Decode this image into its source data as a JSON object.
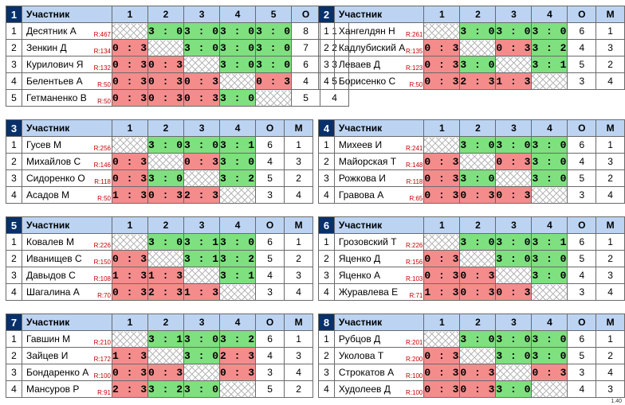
{
  "header": {
    "participant": "Участник",
    "points": "О",
    "place": "М"
  },
  "version": "1.40",
  "groups": [
    {
      "id": "1",
      "players": [
        {
          "name": "Десятник А",
          "rating": "R:467",
          "results": [
            "",
            "3 : 0",
            "3 : 0",
            "3 : 0",
            "3 : 0"
          ],
          "points": "8",
          "place": "1"
        },
        {
          "name": "Зенкин Д",
          "rating": "R:134",
          "results": [
            "0 : 3",
            "",
            "3 : 0",
            "3 : 0",
            "3 : 0"
          ],
          "points": "7",
          "place": "2"
        },
        {
          "name": "Курилович Я",
          "rating": "R:132",
          "results": [
            "0 : 3",
            "0 : 3",
            "",
            "3 : 0",
            "3 : 0"
          ],
          "points": "6",
          "place": "3"
        },
        {
          "name": "Белентьев А",
          "rating": "R:50",
          "results": [
            "0 : 3",
            "0 : 3",
            "0 : 3",
            "",
            "0 : 3"
          ],
          "points": "4",
          "place": "5"
        },
        {
          "name": "Гетманенко В",
          "rating": "R:50",
          "results": [
            "0 : 3",
            "0 : 3",
            "0 : 3",
            "3 : 0",
            ""
          ],
          "points": "5",
          "place": "4"
        }
      ]
    },
    {
      "id": "2",
      "players": [
        {
          "name": "Хангелдян Н",
          "rating": "R:261",
          "results": [
            "",
            "3 : 0",
            "3 : 0",
            "3 : 0"
          ],
          "points": "6",
          "place": "1"
        },
        {
          "name": "Кадлубиский А",
          "rating": "R:135",
          "results": [
            "0 : 3",
            "",
            "0 : 3",
            "3 : 2"
          ],
          "points": "4",
          "place": "3"
        },
        {
          "name": "Леваев Д",
          "rating": "R:123",
          "results": [
            "0 : 3",
            "3 : 0",
            "",
            "3 : 1"
          ],
          "points": "5",
          "place": "2"
        },
        {
          "name": "Борисенко С",
          "rating": "R:50",
          "results": [
            "0 : 3",
            "2 : 3",
            "1 : 3",
            ""
          ],
          "points": "3",
          "place": "4"
        }
      ]
    },
    {
      "id": "3",
      "players": [
        {
          "name": "Гусев М",
          "rating": "R:256",
          "results": [
            "",
            "3 : 0",
            "3 : 0",
            "3 : 1"
          ],
          "points": "6",
          "place": "1"
        },
        {
          "name": "Михайлов С",
          "rating": "R:146",
          "results": [
            "0 : 3",
            "",
            "0 : 3",
            "3 : 0"
          ],
          "points": "4",
          "place": "3"
        },
        {
          "name": "Сидоренко О",
          "rating": "R:118",
          "results": [
            "0 : 3",
            "3 : 0",
            "",
            "3 : 2"
          ],
          "points": "5",
          "place": "2"
        },
        {
          "name": "Асадов М",
          "rating": "R:50",
          "results": [
            "1 : 3",
            "0 : 3",
            "2 : 3",
            ""
          ],
          "points": "3",
          "place": "4"
        }
      ]
    },
    {
      "id": "4",
      "players": [
        {
          "name": "Михеев И",
          "rating": "R:241",
          "results": [
            "",
            "3 : 0",
            "3 : 0",
            "3 : 0"
          ],
          "points": "6",
          "place": "1"
        },
        {
          "name": "Майорская Т",
          "rating": "R:148",
          "results": [
            "0 : 3",
            "",
            "0 : 3",
            "3 : 0"
          ],
          "points": "4",
          "place": "3"
        },
        {
          "name": "Рожкова И",
          "rating": "R:118",
          "results": [
            "0 : 3",
            "3 : 0",
            "",
            "3 : 0"
          ],
          "points": "5",
          "place": "2"
        },
        {
          "name": "Гравова А",
          "rating": "R:65",
          "results": [
            "0 : 3",
            "0 : 3",
            "0 : 3",
            ""
          ],
          "points": "3",
          "place": "4"
        }
      ]
    },
    {
      "id": "5",
      "players": [
        {
          "name": "Ковалев М",
          "rating": "R:226",
          "results": [
            "",
            "3 : 0",
            "3 : 1",
            "3 : 0"
          ],
          "points": "6",
          "place": "1"
        },
        {
          "name": "Иванищев С",
          "rating": "R:150",
          "results": [
            "0 : 3",
            "",
            "3 : 1",
            "3 : 2"
          ],
          "points": "5",
          "place": "2"
        },
        {
          "name": "Давыдов С",
          "rating": "R:108",
          "results": [
            "1 : 3",
            "1 : 3",
            "",
            "3 : 1"
          ],
          "points": "4",
          "place": "3"
        },
        {
          "name": "Шагалина А",
          "rating": "R:70",
          "results": [
            "0 : 3",
            "2 : 3",
            "1 : 3",
            ""
          ],
          "points": "3",
          "place": "4"
        }
      ]
    },
    {
      "id": "6",
      "players": [
        {
          "name": "Грозовский Т",
          "rating": "R:226",
          "results": [
            "",
            "3 : 0",
            "3 : 0",
            "3 : 1"
          ],
          "points": "6",
          "place": "1"
        },
        {
          "name": "Яценко Д",
          "rating": "R:156",
          "results": [
            "0 : 3",
            "",
            "3 : 0",
            "3 : 0"
          ],
          "points": "5",
          "place": "2"
        },
        {
          "name": "Яценко А",
          "rating": "R:103",
          "results": [
            "0 : 3",
            "0 : 3",
            "",
            "3 : 0"
          ],
          "points": "4",
          "place": "3"
        },
        {
          "name": "Журавлева Е",
          "rating": "R:71",
          "results": [
            "1 : 3",
            "0 : 3",
            "0 : 3",
            ""
          ],
          "points": "3",
          "place": "4"
        }
      ]
    },
    {
      "id": "7",
      "players": [
        {
          "name": "Гавшин М",
          "rating": "R:210",
          "results": [
            "",
            "3 : 1",
            "3 : 0",
            "3 : 2"
          ],
          "points": "6",
          "place": "1"
        },
        {
          "name": "Зайцев И",
          "rating": "R:172",
          "results": [
            "1 : 3",
            "",
            "3 : 0",
            "2 : 3"
          ],
          "points": "4",
          "place": "3"
        },
        {
          "name": "Бондаренко А",
          "rating": "R:100",
          "results": [
            "0 : 3",
            "0 : 3",
            "",
            "0 : 3"
          ],
          "points": "3",
          "place": "4"
        },
        {
          "name": "Мансуров Р",
          "rating": "R:91",
          "results": [
            "2 : 3",
            "3 : 2",
            "3 : 0",
            ""
          ],
          "points": "5",
          "place": "2"
        }
      ]
    },
    {
      "id": "8",
      "players": [
        {
          "name": "Рубцов Д",
          "rating": "R:201",
          "results": [
            "",
            "3 : 0",
            "3 : 0",
            "3 : 0"
          ],
          "points": "6",
          "place": "1"
        },
        {
          "name": "Уколова Т",
          "rating": "R:200",
          "results": [
            "0 : 3",
            "",
            "3 : 0",
            "3 : 0"
          ],
          "points": "5",
          "place": "2"
        },
        {
          "name": "Строкатов А",
          "rating": "R:100",
          "results": [
            "0 : 3",
            "0 : 3",
            "",
            "0 : 3"
          ],
          "points": "3",
          "place": "4"
        },
        {
          "name": "Худолеев Д",
          "rating": "R:100",
          "results": [
            "0 : 3",
            "0 : 3",
            "3 : 0",
            ""
          ],
          "points": "4",
          "place": "3"
        }
      ]
    }
  ]
}
